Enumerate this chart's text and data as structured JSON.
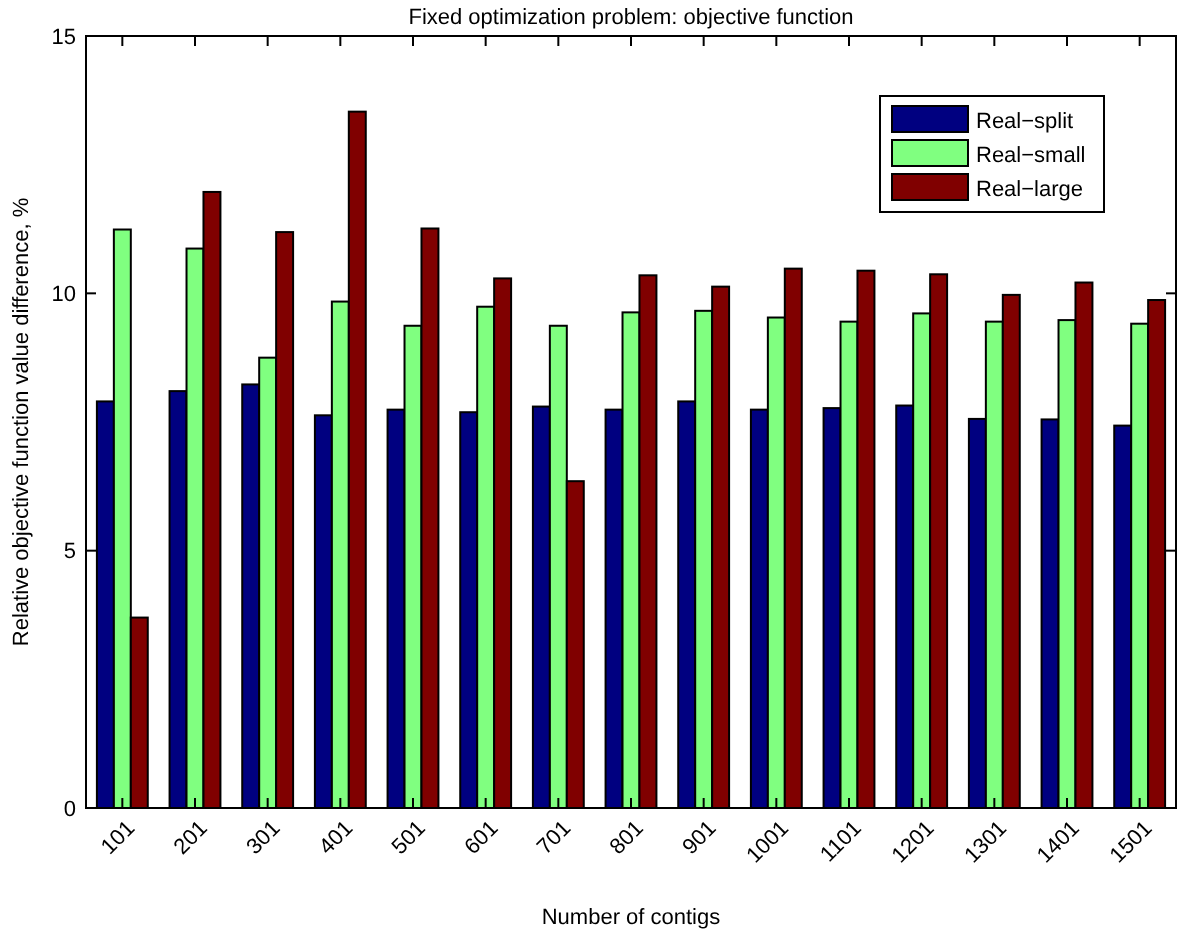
{
  "chart_data": {
    "type": "bar",
    "title": "Fixed optimization problem: objective function",
    "xlabel": "Number of contigs",
    "ylabel": "Relative objective function value difference, %",
    "categories": [
      "101",
      "201",
      "301",
      "401",
      "501",
      "601",
      "701",
      "801",
      "901",
      "1001",
      "1101",
      "1201",
      "1301",
      "1401",
      "1501"
    ],
    "series": [
      {
        "name": "Real−split",
        "color": "#000080",
        "values": [
          7.9,
          8.1,
          8.23,
          7.63,
          7.74,
          7.69,
          7.8,
          7.74,
          7.9,
          7.74,
          7.77,
          7.82,
          7.56,
          7.55,
          7.43
        ]
      },
      {
        "name": "Real−small",
        "color": "#80ff80",
        "values": [
          11.24,
          10.87,
          8.75,
          9.84,
          9.37,
          9.74,
          9.37,
          9.63,
          9.66,
          9.53,
          9.45,
          9.61,
          9.45,
          9.48,
          9.41
        ]
      },
      {
        "name": "Real−large",
        "color": "#800000",
        "values": [
          3.7,
          11.97,
          11.19,
          13.53,
          11.26,
          10.29,
          6.35,
          10.35,
          10.13,
          10.48,
          10.44,
          10.37,
          9.97,
          10.21,
          9.87
        ]
      }
    ],
    "ylim": [
      0,
      15
    ],
    "yticks": [
      0,
      5,
      10,
      15
    ],
    "grid": false,
    "legend": "top right"
  }
}
